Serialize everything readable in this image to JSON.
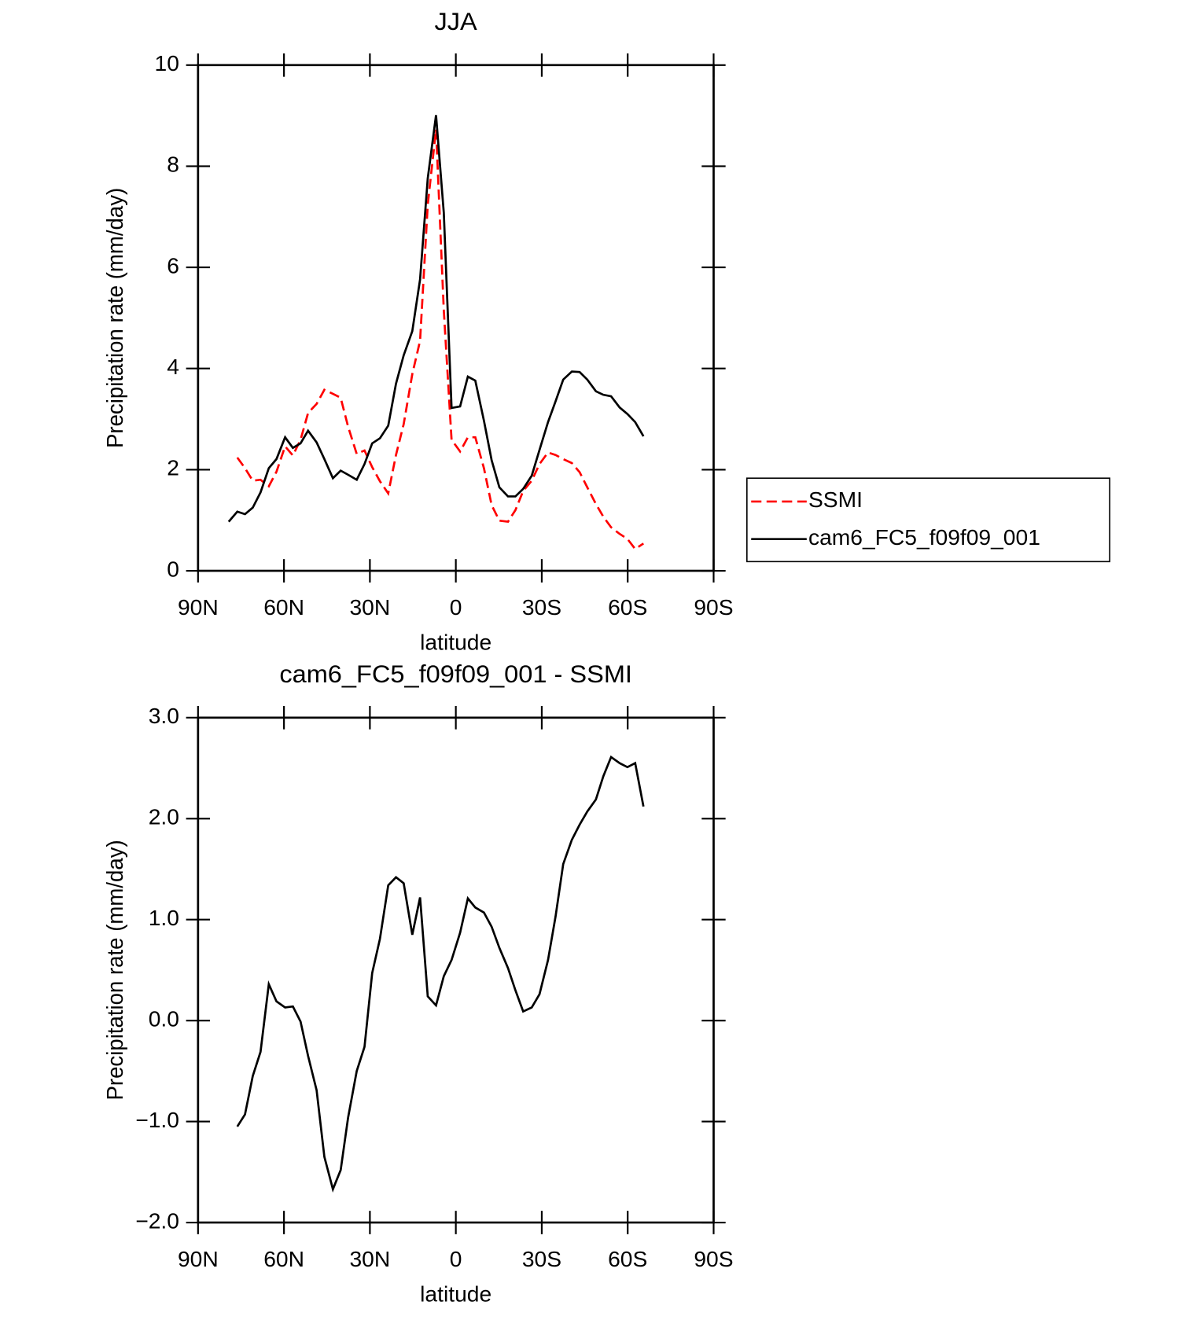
{
  "chart_data": [
    {
      "type": "line",
      "title": "JJA",
      "xlabel": "latitude",
      "ylabel": "Precipitation rate (mm/day)",
      "x": [
        79.3,
        76.3,
        73.6,
        70.9,
        68.2,
        65.3,
        62.6,
        59.6,
        56.9,
        54.2,
        51.6,
        48.6,
        45.9,
        42.9,
        40.2,
        37.6,
        34.6,
        31.9,
        29.2,
        26.5,
        23.6,
        20.9,
        18.2,
        15.2,
        12.5,
        9.8,
        6.9,
        4.2,
        1.5,
        -1.5,
        -4.2,
        -6.8,
        -9.8,
        -12.5,
        -15.2,
        -18.2,
        -20.8,
        -23.5,
        -26.5,
        -29.2,
        -32.2,
        -34.8,
        -37.5,
        -40.5,
        -43.2,
        -45.9,
        -48.9,
        -51.5,
        -54.2,
        -57.2,
        -59.9,
        -62.6,
        -65.5
      ],
      "series": [
        {
          "name": "SSMI",
          "color": "#ff0000",
          "line_style": "dashed",
          "values": [
            null,
            2.24,
            2.03,
            1.78,
            1.8,
            1.67,
            1.96,
            2.46,
            2.28,
            2.59,
            3.12,
            3.3,
            3.58,
            3.5,
            3.42,
            2.85,
            2.31,
            2.38,
            2.05,
            1.77,
            1.53,
            2.29,
            2.9,
            3.89,
            4.55,
            7.24,
            8.73,
            5.15,
            2.59,
            2.36,
            2.64,
            2.64,
            2.03,
            1.3,
            0.99,
            0.97,
            1.2,
            1.58,
            1.78,
            2.11,
            2.34,
            2.29,
            2.21,
            2.13,
            1.95,
            1.65,
            1.32,
            1.07,
            0.86,
            0.73,
            0.63,
            0.43,
            0.54
          ]
        },
        {
          "name": "cam6_FC5_f09f09_001",
          "color": "#000000",
          "line_style": "solid",
          "values": [
            0.97,
            1.17,
            1.12,
            1.25,
            1.55,
            2.03,
            2.21,
            2.64,
            2.43,
            2.52,
            2.77,
            2.54,
            2.21,
            1.83,
            1.98,
            1.9,
            1.8,
            2.11,
            2.52,
            2.62,
            2.87,
            3.7,
            4.26,
            4.74,
            5.76,
            7.76,
            9.01,
            7.08,
            3.22,
            3.25,
            3.84,
            3.76,
            2.97,
            2.19,
            1.65,
            1.47,
            1.47,
            1.62,
            1.88,
            2.39,
            2.94,
            3.35,
            3.78,
            3.94,
            3.93,
            3.78,
            3.55,
            3.48,
            3.45,
            3.23,
            3.1,
            2.94,
            2.66
          ]
        }
      ],
      "xlim": [
        90,
        -90
      ],
      "xticks": [
        {
          "value": 90,
          "label": "90N"
        },
        {
          "value": 60,
          "label": "60N"
        },
        {
          "value": 30,
          "label": "30N"
        },
        0,
        {
          "value": -30,
          "label": "30S"
        },
        {
          "value": -60,
          "label": "60S"
        },
        {
          "value": -90,
          "label": "90S"
        }
      ],
      "ylim": [
        0,
        10
      ],
      "yticks": [
        0,
        2,
        4,
        6,
        8,
        10
      ],
      "legend": "right"
    },
    {
      "type": "line",
      "title": "cam6_FC5_f09f09_001 - SSMI",
      "xlabel": "latitude",
      "ylabel": "Precipitation rate (mm/day)",
      "x": [
        76.3,
        73.6,
        70.9,
        68.2,
        65.3,
        62.6,
        59.6,
        56.9,
        54.2,
        51.6,
        48.6,
        45.9,
        42.9,
        40.2,
        37.6,
        34.6,
        31.9,
        29.2,
        26.5,
        23.6,
        20.9,
        18.2,
        15.2,
        12.5,
        9.8,
        6.9,
        4.2,
        1.5,
        -1.5,
        -4.2,
        -6.8,
        -9.8,
        -12.5,
        -15.2,
        -18.2,
        -20.8,
        -23.5,
        -26.5,
        -29.2,
        -32.2,
        -34.8,
        -37.5,
        -40.5,
        -43.2,
        -45.9,
        -48.9,
        -51.5,
        -54.2,
        -57.2,
        -59.9,
        -62.6,
        -65.5
      ],
      "series": [
        {
          "color": "#000000",
          "line_style": "solid",
          "values": [
            -1.05,
            -0.93,
            -0.55,
            -0.31,
            0.36,
            0.19,
            0.13,
            0.14,
            -0.01,
            -0.35,
            -0.69,
            -1.35,
            -1.67,
            -1.48,
            -0.96,
            -0.5,
            -0.26,
            0.47,
            0.81,
            1.34,
            1.42,
            1.36,
            0.85,
            1.22,
            0.24,
            0.15,
            0.44,
            0.6,
            0.87,
            1.21,
            1.12,
            1.07,
            0.93,
            0.72,
            0.52,
            0.3,
            0.09,
            0.13,
            0.26,
            0.6,
            1.03,
            1.55,
            1.79,
            1.94,
            2.07,
            2.19,
            2.42,
            2.61,
            2.55,
            2.51,
            2.55,
            2.12
          ]
        }
      ],
      "xlim": [
        90,
        -90
      ],
      "xticks": [
        {
          "value": 90,
          "label": "90N"
        },
        {
          "value": 60,
          "label": "60N"
        },
        {
          "value": 30,
          "label": "30N"
        },
        0,
        {
          "value": -30,
          "label": "30S"
        },
        {
          "value": -60,
          "label": "60S"
        },
        {
          "value": -90,
          "label": "90S"
        }
      ],
      "ylim": [
        -2,
        3
      ],
      "yticks": [
        {
          "value": -2,
          "label": "−2.0"
        },
        {
          "value": -1,
          "label": "−1.0"
        },
        {
          "value": 0,
          "label": "0.0"
        },
        {
          "value": 1,
          "label": "1.0"
        },
        {
          "value": 2,
          "label": "2.0"
        },
        {
          "value": 3,
          "label": "3.0"
        }
      ]
    }
  ]
}
